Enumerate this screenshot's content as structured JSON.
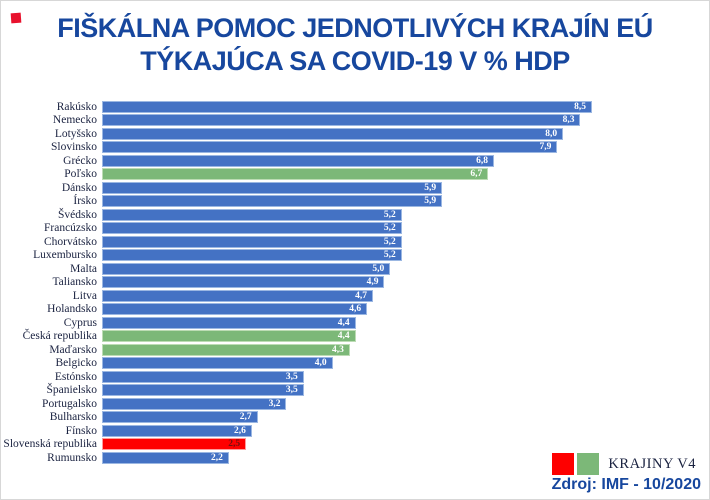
{
  "header": {
    "title_line1": "FIŠKÁLNA POMOC JEDNOTLIVÝCH KRAJÍN EÚ",
    "title_line2": "TÝKAJÚCA SA COVID-19 V % HDP",
    "title_color": "#17479e"
  },
  "chart_data": {
    "type": "bar",
    "orientation": "horizontal",
    "title": "FIŠKÁLNA POMOC JEDNOTLIVÝCH KRAJÍN EÚ TÝKAJÚCA SA COVID-19 V % HDP",
    "xlabel": "",
    "ylabel": "",
    "xlim": [
      0,
      8.5
    ],
    "grid": false,
    "categories": [
      "Rakúsko",
      "Nemecko",
      "Lotyšsko",
      "Slovinsko",
      "Grécko",
      "Poľsko",
      "Dánsko",
      "Írsko",
      "Švédsko",
      "Francúzsko",
      "Chorvátsko",
      "Luxembursko",
      "Malta",
      "Taliansko",
      "Litva",
      "Holandsko",
      "Cyprus",
      "Česká republika",
      "Maďarsko",
      "Belgicko",
      "Estónsko",
      "Španielsko",
      "Portugalsko",
      "Bulharsko",
      "Fínsko",
      "Slovenská republika",
      "Rumunsko"
    ],
    "values": [
      8.5,
      8.3,
      8.0,
      7.9,
      6.8,
      6.7,
      5.9,
      5.9,
      5.2,
      5.2,
      5.2,
      5.2,
      5.0,
      4.9,
      4.7,
      4.6,
      4.4,
      4.4,
      4.3,
      4.0,
      3.5,
      3.5,
      3.2,
      2.7,
      2.6,
      2.5,
      2.2
    ],
    "value_labels": [
      "8,5",
      "8,3",
      "8,0",
      "7,9",
      "6,8",
      "6,7",
      "5,9",
      "5,9",
      "5,2",
      "5,2",
      "5,2",
      "5,2",
      "5,0",
      "4,9",
      "4,7",
      "4,6",
      "4,4",
      "4,4",
      "4,3",
      "4,0",
      "3,5",
      "3,5",
      "3,2",
      "2,7",
      "2,6",
      "2,5",
      "2,2"
    ],
    "groups": [
      "eu",
      "eu",
      "eu",
      "eu",
      "eu",
      "v4",
      "eu",
      "eu",
      "eu",
      "eu",
      "eu",
      "eu",
      "eu",
      "eu",
      "eu",
      "eu",
      "eu",
      "v4",
      "v4",
      "eu",
      "eu",
      "eu",
      "eu",
      "eu",
      "eu",
      "sk",
      "eu"
    ],
    "colors": {
      "eu": "#4472c4",
      "v4": "#7cb878",
      "sk": "#fe0000"
    },
    "border_colors": {
      "eu": "#9bb7e2",
      "v4": "#bcdcb4",
      "sk": "#ff9a9a"
    },
    "value_text_colors": {
      "eu": "#ffffff",
      "v4": "#ffffff",
      "sk": "#701010"
    },
    "legend": {
      "position": "bottom-right",
      "label": "KRAJINY V4",
      "swatch_colors": [
        "#fe0000",
        "#7cb878"
      ]
    }
  },
  "footer": {
    "source": "Zdroj: IMF - 10/2020"
  },
  "decor": {
    "red_mark_color": "#e8112d"
  }
}
